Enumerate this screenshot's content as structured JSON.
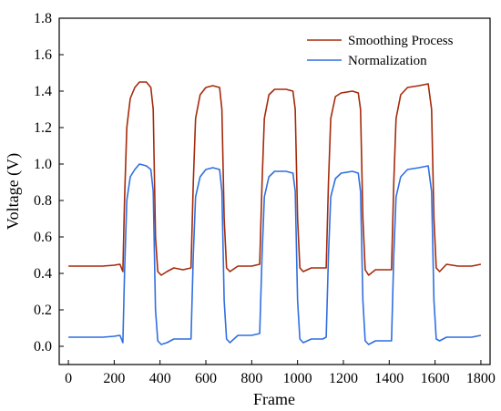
{
  "chart_data": {
    "type": "line",
    "title": "",
    "xlabel": "Frame",
    "ylabel": "Voltage (V)",
    "xlim": [
      -40,
      1840
    ],
    "ylim": [
      -0.1,
      1.8
    ],
    "xticks": [
      0,
      200,
      400,
      600,
      800,
      1000,
      1200,
      1400,
      1600,
      1800
    ],
    "yticks": [
      0.0,
      0.2,
      0.4,
      0.6,
      0.8,
      1.0,
      1.2,
      1.4,
      1.6,
      1.8
    ],
    "xtick_labels": [
      "0",
      "200",
      "400",
      "600",
      "800",
      "1000",
      "1200",
      "1400",
      "1600",
      "1800"
    ],
    "ytick_labels": [
      "0.0",
      "0.2",
      "0.4",
      "0.6",
      "0.8",
      "1.0",
      "1.2",
      "1.4",
      "1.6",
      "1.8"
    ],
    "grid": false,
    "legend_position": "top-right",
    "series": [
      {
        "name": "Smoothing Process",
        "color": "#a52a0a",
        "points": [
          [
            0,
            0.44
          ],
          [
            50,
            0.44
          ],
          [
            100,
            0.44
          ],
          [
            150,
            0.44
          ],
          [
            200,
            0.445
          ],
          [
            225,
            0.45
          ],
          [
            238,
            0.41
          ],
          [
            245,
            0.8
          ],
          [
            255,
            1.2
          ],
          [
            270,
            1.36
          ],
          [
            290,
            1.42
          ],
          [
            310,
            1.45
          ],
          [
            340,
            1.45
          ],
          [
            360,
            1.42
          ],
          [
            370,
            1.3
          ],
          [
            380,
            0.6
          ],
          [
            390,
            0.41
          ],
          [
            405,
            0.39
          ],
          [
            430,
            0.41
          ],
          [
            460,
            0.43
          ],
          [
            500,
            0.42
          ],
          [
            535,
            0.43
          ],
          [
            545,
            0.9
          ],
          [
            555,
            1.25
          ],
          [
            575,
            1.38
          ],
          [
            600,
            1.42
          ],
          [
            630,
            1.43
          ],
          [
            660,
            1.42
          ],
          [
            670,
            1.3
          ],
          [
            680,
            0.7
          ],
          [
            690,
            0.43
          ],
          [
            705,
            0.41
          ],
          [
            740,
            0.44
          ],
          [
            800,
            0.44
          ],
          [
            835,
            0.45
          ],
          [
            845,
            0.9
          ],
          [
            855,
            1.25
          ],
          [
            875,
            1.38
          ],
          [
            900,
            1.41
          ],
          [
            950,
            1.41
          ],
          [
            980,
            1.4
          ],
          [
            990,
            1.3
          ],
          [
            1000,
            0.7
          ],
          [
            1010,
            0.43
          ],
          [
            1025,
            0.41
          ],
          [
            1060,
            0.43
          ],
          [
            1110,
            0.43
          ],
          [
            1125,
            0.43
          ],
          [
            1135,
            0.9
          ],
          [
            1145,
            1.25
          ],
          [
            1165,
            1.37
          ],
          [
            1190,
            1.39
          ],
          [
            1240,
            1.4
          ],
          [
            1265,
            1.39
          ],
          [
            1275,
            1.3
          ],
          [
            1285,
            0.7
          ],
          [
            1295,
            0.42
          ],
          [
            1310,
            0.39
          ],
          [
            1340,
            0.42
          ],
          [
            1390,
            0.42
          ],
          [
            1410,
            0.42
          ],
          [
            1420,
            0.9
          ],
          [
            1430,
            1.25
          ],
          [
            1450,
            1.38
          ],
          [
            1480,
            1.42
          ],
          [
            1530,
            1.43
          ],
          [
            1570,
            1.44
          ],
          [
            1585,
            1.3
          ],
          [
            1595,
            0.7
          ],
          [
            1605,
            0.43
          ],
          [
            1620,
            0.41
          ],
          [
            1650,
            0.45
          ],
          [
            1700,
            0.44
          ],
          [
            1760,
            0.44
          ],
          [
            1800,
            0.45
          ]
        ]
      },
      {
        "name": "Normalization",
        "color": "#2f6fe0",
        "points": [
          [
            0,
            0.05
          ],
          [
            50,
            0.05
          ],
          [
            100,
            0.05
          ],
          [
            150,
            0.05
          ],
          [
            200,
            0.055
          ],
          [
            225,
            0.06
          ],
          [
            238,
            0.02
          ],
          [
            245,
            0.4
          ],
          [
            255,
            0.8
          ],
          [
            270,
            0.93
          ],
          [
            290,
            0.97
          ],
          [
            310,
            1.0
          ],
          [
            340,
            0.99
          ],
          [
            360,
            0.97
          ],
          [
            370,
            0.85
          ],
          [
            380,
            0.2
          ],
          [
            390,
            0.03
          ],
          [
            405,
            0.01
          ],
          [
            430,
            0.02
          ],
          [
            460,
            0.04
          ],
          [
            500,
            0.04
          ],
          [
            535,
            0.04
          ],
          [
            545,
            0.5
          ],
          [
            555,
            0.82
          ],
          [
            575,
            0.93
          ],
          [
            600,
            0.97
          ],
          [
            630,
            0.98
          ],
          [
            660,
            0.97
          ],
          [
            670,
            0.85
          ],
          [
            680,
            0.25
          ],
          [
            690,
            0.04
          ],
          [
            705,
            0.02
          ],
          [
            740,
            0.06
          ],
          [
            800,
            0.06
          ],
          [
            835,
            0.07
          ],
          [
            845,
            0.5
          ],
          [
            855,
            0.82
          ],
          [
            875,
            0.93
          ],
          [
            900,
            0.96
          ],
          [
            950,
            0.96
          ],
          [
            980,
            0.95
          ],
          [
            990,
            0.85
          ],
          [
            1000,
            0.25
          ],
          [
            1010,
            0.04
          ],
          [
            1025,
            0.02
          ],
          [
            1060,
            0.04
          ],
          [
            1110,
            0.04
          ],
          [
            1125,
            0.05
          ],
          [
            1135,
            0.5
          ],
          [
            1145,
            0.82
          ],
          [
            1165,
            0.92
          ],
          [
            1190,
            0.95
          ],
          [
            1240,
            0.96
          ],
          [
            1265,
            0.95
          ],
          [
            1275,
            0.85
          ],
          [
            1285,
            0.25
          ],
          [
            1295,
            0.03
          ],
          [
            1310,
            0.01
          ],
          [
            1340,
            0.03
          ],
          [
            1390,
            0.03
          ],
          [
            1410,
            0.03
          ],
          [
            1420,
            0.5
          ],
          [
            1430,
            0.82
          ],
          [
            1450,
            0.93
          ],
          [
            1480,
            0.97
          ],
          [
            1530,
            0.98
          ],
          [
            1570,
            0.99
          ],
          [
            1585,
            0.85
          ],
          [
            1595,
            0.25
          ],
          [
            1605,
            0.04
          ],
          [
            1620,
            0.03
          ],
          [
            1650,
            0.05
          ],
          [
            1700,
            0.05
          ],
          [
            1760,
            0.05
          ],
          [
            1800,
            0.06
          ]
        ]
      }
    ]
  }
}
